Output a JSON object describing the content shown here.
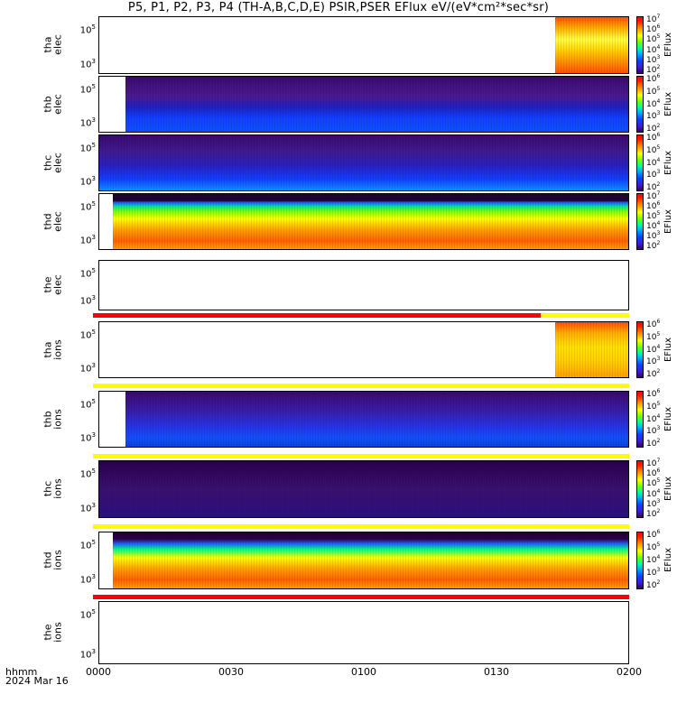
{
  "title": "P5, P1, P2, P3, P4 (TH-A,B,C,D,E) PSIR,PSER EFlux eV/(eV*cm²*sec*sr)",
  "xaxis": {
    "label_line1": "hhmm",
    "label_line2": "2024 Mar 16",
    "ticks": [
      "0000",
      "0030",
      "0100",
      "0130",
      "0200"
    ]
  },
  "chart_data": [
    {
      "type": "heatmap",
      "name": "tha elec",
      "ylabel": [
        "tha",
        "elec"
      ],
      "yticks": [
        "10^5",
        "10^3"
      ],
      "data_start_hhmm": "0143",
      "cbar_ticks": [
        "10^7",
        "10^6",
        "10^5",
        "10^4",
        "10^3",
        "10^2"
      ],
      "cbar_label": "EFlux"
    },
    {
      "type": "heatmap",
      "name": "thb elec",
      "ylabel": [
        "thb",
        "elec"
      ],
      "yticks": [
        "10^5",
        "10^3"
      ],
      "data_start_hhmm": "0006",
      "cbar_ticks": [
        "10^6",
        "10^5",
        "10^4",
        "10^3",
        "10^2"
      ],
      "cbar_label": "EFlux"
    },
    {
      "type": "heatmap",
      "name": "thc elec",
      "ylabel": [
        "thc",
        "elec"
      ],
      "yticks": [
        "10^5",
        "10^3"
      ],
      "data_start_hhmm": "0000",
      "cbar_ticks": [
        "10^6",
        "10^5",
        "10^4",
        "10^3",
        "10^2"
      ],
      "cbar_label": "EFlux"
    },
    {
      "type": "heatmap",
      "name": "thd elec",
      "ylabel": [
        "thd",
        "elec"
      ],
      "yticks": [
        "10^5",
        "10^3"
      ],
      "data_start_hhmm": "0003",
      "cbar_ticks": [
        "10^7",
        "10^6",
        "10^5",
        "10^4",
        "10^3",
        "10^2"
      ],
      "cbar_label": "EFlux"
    },
    {
      "type": "heatmap",
      "name": "the elec",
      "ylabel": [
        "the",
        "elec"
      ],
      "yticks": [
        "10^5",
        "10^3"
      ],
      "data_start_hhmm": null,
      "cbar_ticks": [],
      "cbar_label": ""
    },
    {
      "type": "heatmap",
      "name": "tha ions",
      "ylabel": [
        "tha",
        "ions"
      ],
      "yticks": [
        "10^5",
        "10^3"
      ],
      "data_start_hhmm": "0143",
      "cbar_ticks": [
        "10^6",
        "10^5",
        "10^4",
        "10^3",
        "10^2"
      ],
      "cbar_label": "EFlux"
    },
    {
      "type": "heatmap",
      "name": "thb ions",
      "ylabel": [
        "thb",
        "ions"
      ],
      "yticks": [
        "10^5",
        "10^3"
      ],
      "data_start_hhmm": "0006",
      "cbar_ticks": [
        "10^6",
        "10^5",
        "10^4",
        "10^3",
        "10^2"
      ],
      "cbar_label": "EFlux"
    },
    {
      "type": "heatmap",
      "name": "thc ions",
      "ylabel": [
        "thc",
        "ions"
      ],
      "yticks": [
        "10^5",
        "10^3"
      ],
      "data_start_hhmm": "0000",
      "cbar_ticks": [
        "10^7",
        "10^6",
        "10^5",
        "10^4",
        "10^3",
        "10^2"
      ],
      "cbar_label": "EFlux"
    },
    {
      "type": "heatmap",
      "name": "thd ions",
      "ylabel": [
        "thd",
        "ions"
      ],
      "yticks": [
        "10^5",
        "10^3"
      ],
      "data_start_hhmm": "0003",
      "cbar_ticks": [
        "10^6",
        "10^5",
        "10^4",
        "10^3",
        "10^2"
      ],
      "cbar_label": "EFlux"
    },
    {
      "type": "heatmap",
      "name": "the ions",
      "ylabel": [
        "the",
        "ions"
      ],
      "yticks": [
        "10^5",
        "10^3"
      ],
      "data_start_hhmm": null,
      "cbar_ticks": [],
      "cbar_label": ""
    }
  ],
  "flag_bars": [
    {
      "color": "#ff0000",
      "until_hhmm": "0140",
      "then_color": "#ffff00"
    },
    {
      "color": "#ffff00"
    },
    {
      "color": "#ffff00"
    },
    {
      "color": "#ffff00"
    },
    {
      "color": "#ff0000"
    }
  ],
  "colors": {
    "low": "#3a0060",
    "blue": "#1040ff",
    "green": "#00ff60",
    "yellow": "#ffff00",
    "orange": "#ff9000",
    "red": "#ff0000"
  }
}
